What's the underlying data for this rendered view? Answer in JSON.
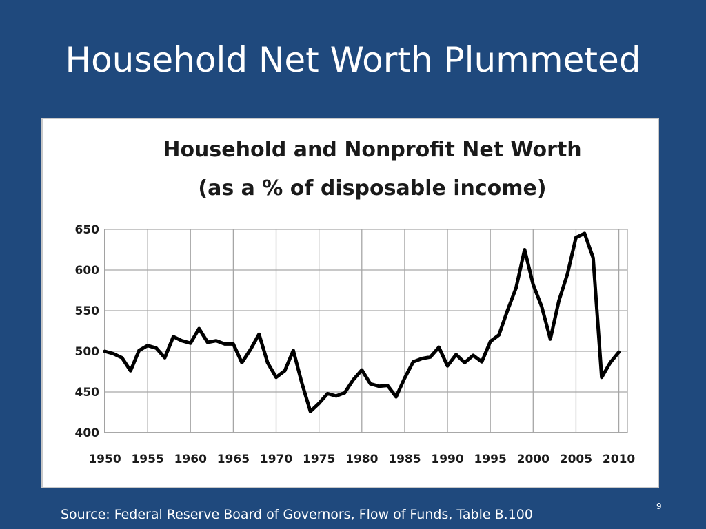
{
  "slide": {
    "title": "Household Net Worth Plummeted",
    "source": "Source: Federal Reserve Board of Governors, Flow of Funds, Table B.100",
    "page_number": "9"
  },
  "chart_data": {
    "type": "line",
    "title_line1": "Household and Nonprofit Net Worth",
    "title_line2": "(as a % of disposable income)",
    "xlabel": "",
    "ylabel": "",
    "ylim": [
      400,
      650
    ],
    "xlim": [
      1950,
      2011
    ],
    "x_ticks": [
      "1950",
      "1955",
      "1960",
      "1965",
      "1970",
      "1975",
      "1980",
      "1985",
      "1990",
      "1995",
      "2000",
      "2005",
      "2010"
    ],
    "y_ticks": [
      "400",
      "450",
      "500",
      "550",
      "600",
      "650"
    ],
    "grid": true,
    "series": [
      {
        "color": "#000000",
        "x": [
          1950,
          1951,
          1952,
          1953,
          1954,
          1955,
          1956,
          1957,
          1958,
          1959,
          1960,
          1961,
          1962,
          1963,
          1964,
          1965,
          1966,
          1967,
          1968,
          1969,
          1970,
          1971,
          1972,
          1973,
          1974,
          1975,
          1976,
          1977,
          1978,
          1979,
          1980,
          1981,
          1982,
          1983,
          1984,
          1985,
          1986,
          1987,
          1988,
          1989,
          1990,
          1991,
          1992,
          1993,
          1994,
          1995,
          1996,
          1997,
          1998,
          1999,
          2000,
          2001,
          2002,
          2003,
          2004,
          2005,
          2006,
          2007,
          2008,
          2009,
          2010
        ],
        "values": [
          500,
          497,
          492,
          476,
          501,
          507,
          504,
          492,
          518,
          513,
          510,
          528,
          511,
          513,
          509,
          509,
          486,
          502,
          521,
          486,
          468,
          476,
          501,
          461,
          426,
          436,
          448,
          445,
          449,
          465,
          477,
          460,
          457,
          458,
          444,
          467,
          487,
          491,
          493,
          505,
          482,
          496,
          486,
          495,
          487,
          512,
          520,
          550,
          578,
          625,
          582,
          555,
          515,
          562,
          595,
          640,
          645,
          615,
          468,
          486,
          499
        ]
      }
    ]
  }
}
